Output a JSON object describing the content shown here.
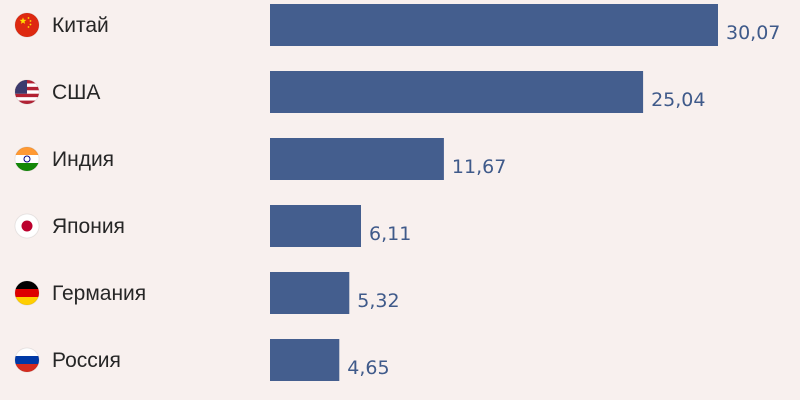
{
  "colors": {
    "bar": "#445e8e",
    "background": "#f8f0ee",
    "value_text": "#3f5a8a",
    "label_text": "#262626"
  },
  "chart_data": {
    "type": "bar",
    "orientation": "horizontal",
    "categories": [
      "Китай",
      "США",
      "Индия",
      "Япония",
      "Германия",
      "Россия"
    ],
    "values": [
      30.07,
      25.04,
      11.67,
      6.11,
      5.32,
      4.65
    ],
    "value_labels": [
      "30,07",
      "25,04",
      "11,67",
      "6,11",
      "5,32",
      "4,65"
    ],
    "flag_icons": [
      "china-flag-icon",
      "usa-flag-icon",
      "india-flag-icon",
      "japan-flag-icon",
      "germany-flag-icon",
      "russia-flag-icon"
    ],
    "title": "",
    "xlabel": "",
    "ylabel": "",
    "xlim": [
      0,
      30.07
    ],
    "grid": false,
    "legend": "none"
  }
}
